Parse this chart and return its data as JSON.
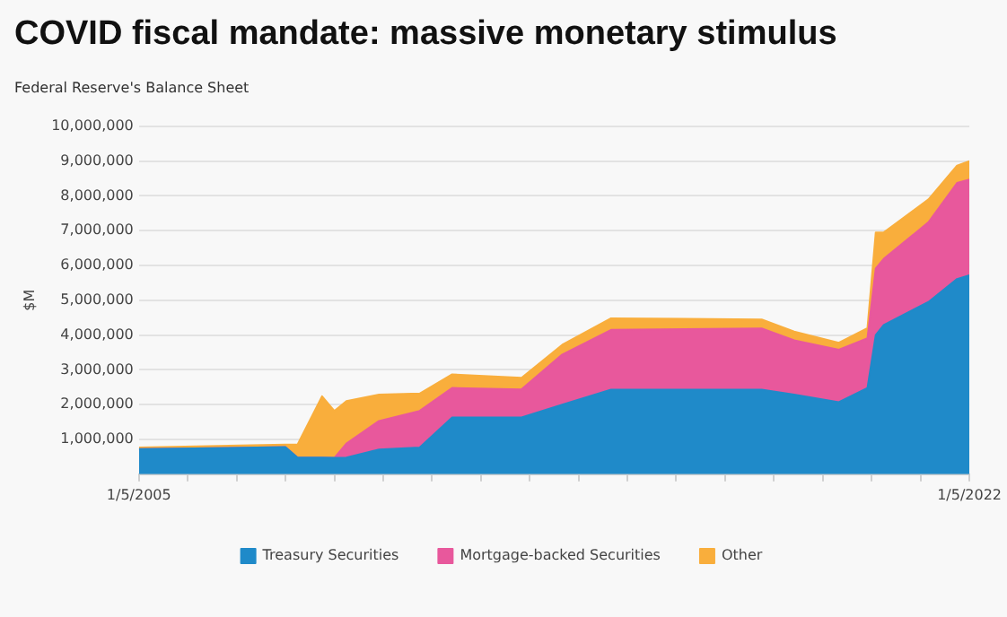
{
  "chart_data": {
    "type": "area",
    "stacked": true,
    "title": "COVID fiscal mandate: massive monetary stimulus",
    "subtitle": "Federal Reserve's Balance Sheet",
    "ylabel": "$M",
    "x": [
      "2005-01-05",
      "2008-01-05",
      "2008-04-05",
      "2008-10-05",
      "2009-01-05",
      "2009-04-05",
      "2009-12-05",
      "2010-10-05",
      "2011-06-05",
      "2012-11-05",
      "2013-09-05",
      "2014-09-05",
      "2017-10-05",
      "2018-06-05",
      "2019-05-05",
      "2019-12-05",
      "2020-02-05",
      "2020-04-05",
      "2021-03-05",
      "2021-10-05",
      "2022-01-05"
    ],
    "series": [
      {
        "name": "Treasury Securities",
        "color": "#1f8ac9",
        "values": [
          720000,
          780000,
          480000,
          480000,
          470000,
          480000,
          710000,
          770000,
          1630000,
          1630000,
          2000000,
          2430000,
          2430000,
          2290000,
          2070000,
          2480000,
          4000000,
          4290000,
          4950000,
          5610000,
          5720000
        ]
      },
      {
        "name": "Mortgage-backed Securities",
        "color": "#e8589c",
        "values": [
          0,
          0,
          0,
          0,
          0,
          400000,
          820000,
          1050000,
          850000,
          810000,
          1440000,
          1720000,
          1760000,
          1560000,
          1510000,
          1430000,
          1910000,
          1900000,
          2290000,
          2760000,
          2750000
        ]
      },
      {
        "name": "Other",
        "color": "#f9ae3c",
        "values": [
          50000,
          70000,
          370000,
          1760000,
          1350000,
          1220000,
          760000,
          500000,
          390000,
          330000,
          280000,
          330000,
          260000,
          250000,
          200000,
          290000,
          1040000,
          760000,
          660000,
          500000,
          530000
        ]
      }
    ],
    "xlim": [
      "2005-01-05",
      "2022-01-05"
    ],
    "xticks": [
      {
        "value": "2005-01-05",
        "label": "1/5/2005"
      },
      {
        "value": "2006-01-05",
        "label": null
      },
      {
        "value": "2007-01-05",
        "label": null
      },
      {
        "value": "2008-01-05",
        "label": null
      },
      {
        "value": "2009-01-05",
        "label": null
      },
      {
        "value": "2010-01-05",
        "label": null
      },
      {
        "value": "2011-01-05",
        "label": null
      },
      {
        "value": "2012-01-05",
        "label": null
      },
      {
        "value": "2013-01-05",
        "label": null
      },
      {
        "value": "2014-01-05",
        "label": null
      },
      {
        "value": "2015-01-05",
        "label": null
      },
      {
        "value": "2016-01-05",
        "label": null
      },
      {
        "value": "2017-01-05",
        "label": null
      },
      {
        "value": "2018-01-05",
        "label": null
      },
      {
        "value": "2019-01-05",
        "label": null
      },
      {
        "value": "2020-01-05",
        "label": null
      },
      {
        "value": "2021-01-05",
        "label": null
      },
      {
        "value": "2022-01-05",
        "label": "1/5/2022"
      }
    ],
    "ylim": [
      0,
      10000000
    ],
    "yticks": [
      {
        "value": 0,
        "label": null
      },
      {
        "value": 1000000,
        "label": "1,000,000"
      },
      {
        "value": 2000000,
        "label": "2,000,000"
      },
      {
        "value": 3000000,
        "label": "3,000,000"
      },
      {
        "value": 4000000,
        "label": "4,000,000"
      },
      {
        "value": 5000000,
        "label": "5,000,000"
      },
      {
        "value": 6000000,
        "label": "6,000,000"
      },
      {
        "value": 7000000,
        "label": "7,000,000"
      },
      {
        "value": 8000000,
        "label": "8,000,000"
      },
      {
        "value": 9000000,
        "label": "9,000,000"
      },
      {
        "value": 10000000,
        "label": "10,000,000"
      }
    ],
    "grid": "y",
    "legend": "bottom",
    "marker": "none"
  }
}
